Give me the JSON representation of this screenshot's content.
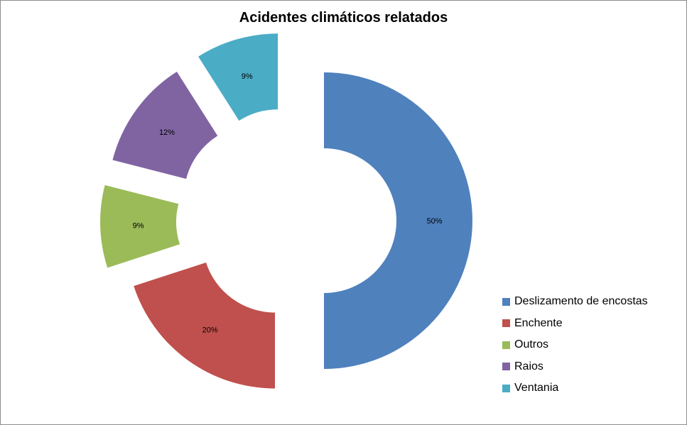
{
  "chart_data": {
    "type": "pie",
    "variant": "exploded donut",
    "title": "Acidentes climáticos relatados",
    "legend_position": "right",
    "slices": [
      {
        "name": "Deslizamento de encostas",
        "value": 50,
        "label": "50%",
        "color": "#4F81BD"
      },
      {
        "name": "Enchente",
        "value": 20,
        "label": "20%",
        "color": "#C0504D"
      },
      {
        "name": "Outros",
        "value": 9,
        "label": "9%",
        "color": "#9BBB59"
      },
      {
        "name": "Raios",
        "value": 12,
        "label": "12%",
        "color": "#8064A2"
      },
      {
        "name": "Ventania",
        "value": 9,
        "label": "9%",
        "color": "#4BACC6"
      }
    ]
  }
}
